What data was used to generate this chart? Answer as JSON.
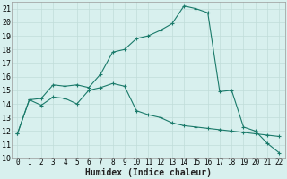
{
  "xlabel": "Humidex (Indice chaleur)",
  "line1_x": [
    0,
    1,
    2,
    3,
    4,
    5,
    6,
    7,
    8,
    9,
    10,
    11,
    12,
    13,
    14,
    15,
    16,
    17,
    18,
    19,
    20,
    21,
    22
  ],
  "line1_y": [
    11.8,
    14.3,
    14.4,
    15.4,
    15.3,
    15.4,
    15.2,
    16.2,
    17.8,
    18.0,
    18.8,
    19.0,
    19.4,
    19.9,
    21.2,
    21.0,
    20.7,
    14.9,
    15.0,
    12.3,
    12.0,
    11.1,
    10.4
  ],
  "line2_x": [
    0,
    1,
    2,
    3,
    4,
    5,
    6,
    7,
    8,
    9,
    10,
    11,
    12,
    13,
    14,
    15,
    16,
    17,
    18,
    19,
    20,
    21,
    22
  ],
  "line2_y": [
    11.8,
    14.3,
    13.9,
    14.5,
    14.4,
    14.0,
    15.0,
    15.2,
    15.5,
    15.3,
    13.5,
    13.2,
    13.0,
    12.6,
    12.4,
    12.3,
    12.2,
    12.1,
    12.0,
    11.9,
    11.8,
    11.7,
    11.6
  ],
  "line_color": "#1a7a6a",
  "bg_color": "#d8f0ee",
  "grid_color": "#c0ddd9",
  "xlim": [
    -0.5,
    22.5
  ],
  "ylim": [
    10,
    21.5
  ],
  "yticks": [
    10,
    11,
    12,
    13,
    14,
    15,
    16,
    17,
    18,
    19,
    20,
    21
  ],
  "xticks": [
    0,
    1,
    2,
    3,
    4,
    5,
    6,
    7,
    8,
    9,
    10,
    11,
    12,
    13,
    14,
    15,
    16,
    17,
    18,
    19,
    20,
    21,
    22
  ],
  "xlabel_fontsize": 7,
  "tick_fontsize": 5.5,
  "ytick_fontsize": 6.0,
  "line_width": 0.8,
  "marker_size": 3.5
}
